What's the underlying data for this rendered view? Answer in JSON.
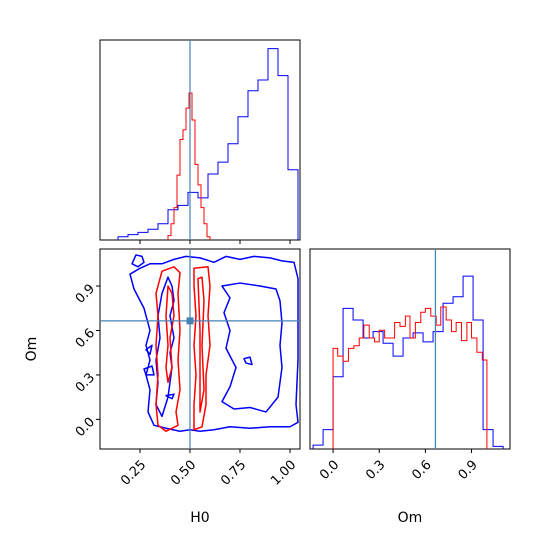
{
  "chart_data": {
    "type": "corner",
    "parameters": [
      "H0",
      "Om"
    ],
    "truth": {
      "H0": 0.5,
      "Om": 0.665
    },
    "colors": {
      "blue": "#0000ff",
      "red": "#ff0000",
      "truth": "#4682b4",
      "frame": "#000000"
    },
    "panels": [
      {
        "id": "hist-H0",
        "type": "step-histogram",
        "xlim": [
          0.05,
          1.05
        ],
        "xticks": [
          0.25,
          0.5,
          0.75,
          1.0
        ],
        "show_tick_labels": false,
        "series": [
          {
            "color": "blue",
            "edges": [
              0.14,
              0.19,
              0.24,
              0.29,
              0.34,
              0.39,
              0.44,
              0.49,
              0.54,
              0.59,
              0.64,
              0.69,
              0.74,
              0.79,
              0.84,
              0.89,
              0.94,
              0.99,
              1.04
            ],
            "counts": [
              0.3,
              0.5,
              0.7,
              1.0,
              1.5,
              2.8,
              3.2,
              4.4,
              3.9,
              6.1,
              7.2,
              8.9,
              11.4,
              13.8,
              14.8,
              17.7,
              15.2,
              6.5
            ]
          },
          {
            "color": "red",
            "edges": [
              0.39,
              0.405,
              0.42,
              0.435,
              0.45,
              0.465,
              0.48,
              0.495,
              0.51,
              0.525,
              0.54,
              0.555,
              0.57,
              0.585,
              0.6
            ],
            "counts": [
              0.4,
              1.5,
              3.0,
              6.0,
              9.3,
              10.2,
              12.2,
              13.6,
              11.1,
              7.0,
              5.1,
              3.0,
              1.5,
              0.3
            ]
          }
        ],
        "ylim": [
          0,
          18.5
        ]
      },
      {
        "id": "hist-Om",
        "type": "step-histogram",
        "xlim": [
          -0.15,
          1.15
        ],
        "xticks": [
          0.0,
          0.3,
          0.6,
          0.9
        ],
        "xtick_labels": [
          "0.0",
          "0.3",
          "0.6",
          "0.9"
        ],
        "xlabel": "Om",
        "series": [
          {
            "color": "blue",
            "edges": [
              -0.13,
              -0.065,
              0.0,
              0.065,
              0.13,
              0.195,
              0.26,
              0.325,
              0.39,
              0.455,
              0.52,
              0.585,
              0.65,
              0.715,
              0.78,
              0.845,
              0.91,
              0.975,
              1.04,
              1.105
            ],
            "counts": [
              0.3,
              1.5,
              5.6,
              10.9,
              10.0,
              8.6,
              9.1,
              8.2,
              7.2,
              8.6,
              9.0,
              8.3,
              9.1,
              11.3,
              11.8,
              13.4,
              10.0,
              1.5,
              0.2
            ]
          },
          {
            "color": "red",
            "edges": [
              0.0,
              0.03,
              0.065,
              0.1,
              0.135,
              0.17,
              0.2,
              0.235,
              0.27,
              0.3,
              0.335,
              0.37,
              0.4,
              0.435,
              0.47,
              0.5,
              0.535,
              0.57,
              0.6,
              0.635,
              0.67,
              0.7,
              0.735,
              0.77,
              0.8,
              0.835,
              0.87,
              0.9,
              0.935,
              0.97,
              1.0
            ],
            "counts": [
              7.8,
              7.2,
              6.8,
              7.8,
              8.0,
              8.6,
              9.6,
              8.6,
              8.3,
              9.2,
              8.6,
              8.6,
              9.8,
              9.5,
              10.3,
              8.6,
              9.8,
              10.6,
              10.9,
              10.3,
              9.6,
              11.0,
              10.0,
              9.1,
              9.8,
              8.4,
              9.8,
              8.6,
              7.5,
              6.9
            ]
          }
        ],
        "ylim": [
          0,
          15.5
        ]
      },
      {
        "id": "contour-H0-Om",
        "type": "contour",
        "xlim": [
          0.05,
          1.05
        ],
        "ylim": [
          -0.2,
          1.15
        ],
        "xticks": [
          0.25,
          0.5,
          0.75,
          1.0
        ],
        "xtick_labels": [
          "0.25",
          "0.50",
          "0.75",
          "1.00"
        ],
        "yticks": [
          0.0,
          0.3,
          0.6,
          0.9
        ],
        "ytick_labels": [
          "0.0",
          "0.3",
          "0.6",
          "0.9"
        ],
        "xlabel": "H0",
        "ylabel": "Om",
        "contours": [
          {
            "color": "blue",
            "points": [
              [
                0.3,
                1.05
              ],
              [
                0.36,
                1.05
              ],
              [
                0.42,
                1.08
              ],
              [
                0.48,
                1.1
              ],
              [
                0.55,
                1.09
              ],
              [
                0.62,
                1.06
              ],
              [
                0.68,
                1.1
              ],
              [
                0.75,
                1.08
              ],
              [
                0.82,
                1.1
              ],
              [
                0.9,
                1.09
              ],
              [
                0.96,
                1.07
              ],
              [
                1.02,
                1.06
              ],
              [
                1.04,
                0.95
              ],
              [
                1.04,
                0.7
              ],
              [
                1.04,
                0.4
              ],
              [
                1.03,
                0.1
              ],
              [
                1.04,
                -0.02
              ],
              [
                1.0,
                -0.05
              ],
              [
                0.9,
                -0.05
              ],
              [
                0.8,
                -0.06
              ],
              [
                0.7,
                -0.05
              ],
              [
                0.62,
                -0.07
              ],
              [
                0.55,
                -0.08
              ],
              [
                0.5,
                -0.07
              ],
              [
                0.45,
                -0.08
              ],
              [
                0.38,
                -0.06
              ],
              [
                0.32,
                -0.04
              ],
              [
                0.29,
                0.05
              ],
              [
                0.3,
                0.2
              ],
              [
                0.28,
                0.3
              ],
              [
                0.3,
                0.4
              ],
              [
                0.28,
                0.5
              ],
              [
                0.3,
                0.6
              ],
              [
                0.27,
                0.75
              ],
              [
                0.22,
                0.88
              ],
              [
                0.2,
                0.98
              ],
              [
                0.25,
                1.02
              ],
              [
                0.3,
                1.05
              ]
            ],
            "closed": true
          },
          {
            "color": "blue",
            "points": [
              [
                0.66,
                0.9
              ],
              [
                0.75,
                0.92
              ],
              [
                0.85,
                0.9
              ],
              [
                0.93,
                0.88
              ],
              [
                0.95,
                0.8
              ],
              [
                0.96,
                0.65
              ],
              [
                0.95,
                0.5
              ],
              [
                0.96,
                0.35
              ],
              [
                0.94,
                0.15
              ],
              [
                0.88,
                0.05
              ],
              [
                0.8,
                0.08
              ],
              [
                0.72,
                0.07
              ],
              [
                0.66,
                0.12
              ],
              [
                0.7,
                0.22
              ],
              [
                0.73,
                0.35
              ],
              [
                0.68,
                0.48
              ],
              [
                0.7,
                0.6
              ],
              [
                0.67,
                0.72
              ],
              [
                0.7,
                0.82
              ],
              [
                0.66,
                0.9
              ]
            ],
            "closed": true
          },
          {
            "color": "blue",
            "points": [
              [
                0.39,
                0.96
              ],
              [
                0.41,
                0.9
              ],
              [
                0.42,
                0.8
              ],
              [
                0.4,
                0.7
              ],
              [
                0.42,
                0.55
              ],
              [
                0.4,
                0.45
              ],
              [
                0.41,
                0.35
              ],
              [
                0.4,
                0.25
              ],
              [
                0.39,
                0.15
              ],
              [
                0.36,
                0.02
              ],
              [
                0.33,
                0.1
              ],
              [
                0.34,
                0.25
              ],
              [
                0.33,
                0.4
              ],
              [
                0.35,
                0.55
              ],
              [
                0.34,
                0.7
              ],
              [
                0.36,
                0.85
              ],
              [
                0.39,
                0.96
              ]
            ],
            "closed": true
          },
          {
            "color": "blue",
            "points": [
              [
                0.23,
                1.11
              ],
              [
                0.26,
                1.1
              ],
              [
                0.27,
                1.06
              ],
              [
                0.24,
                1.03
              ],
              [
                0.21,
                1.05
              ],
              [
                0.23,
                1.11
              ]
            ],
            "closed": true
          },
          {
            "color": "blue",
            "points": [
              [
                0.28,
                0.47
              ],
              [
                0.31,
                0.5
              ],
              [
                0.3,
                0.44
              ],
              [
                0.28,
                0.47
              ]
            ],
            "closed": true
          },
          {
            "color": "blue",
            "points": [
              [
                0.27,
                0.34
              ],
              [
                0.31,
                0.36
              ],
              [
                0.32,
                0.3
              ],
              [
                0.28,
                0.3
              ],
              [
                0.27,
                0.34
              ]
            ],
            "closed": true
          },
          {
            "color": "blue",
            "points": [
              [
                0.77,
                0.41
              ],
              [
                0.8,
                0.42
              ],
              [
                0.81,
                0.37
              ],
              [
                0.78,
                0.38
              ],
              [
                0.77,
                0.41
              ]
            ],
            "closed": true
          },
          {
            "color": "blue",
            "points": [
              [
                0.38,
                0.16
              ],
              [
                0.42,
                0.17
              ],
              [
                0.41,
                0.14
              ],
              [
                0.38,
                0.16
              ]
            ],
            "closed": true
          },
          {
            "color": "red",
            "points": [
              [
                0.36,
                1.0
              ],
              [
                0.42,
                1.03
              ],
              [
                0.45,
                0.99
              ],
              [
                0.44,
                0.85
              ],
              [
                0.45,
                0.6
              ],
              [
                0.44,
                0.4
              ],
              [
                0.45,
                0.2
              ],
              [
                0.43,
                0.05
              ],
              [
                0.44,
                -0.04
              ],
              [
                0.38,
                -0.08
              ],
              [
                0.34,
                -0.04
              ],
              [
                0.33,
                0.1
              ],
              [
                0.34,
                0.3
              ],
              [
                0.33,
                0.5
              ],
              [
                0.34,
                0.7
              ],
              [
                0.33,
                0.85
              ],
              [
                0.36,
                1.0
              ]
            ],
            "closed": true
          },
          {
            "color": "red",
            "points": [
              [
                0.52,
                1.02
              ],
              [
                0.59,
                1.03
              ],
              [
                0.6,
                0.9
              ],
              [
                0.59,
                0.7
              ],
              [
                0.6,
                0.5
              ],
              [
                0.58,
                0.3
              ],
              [
                0.58,
                0.1
              ],
              [
                0.56,
                -0.05
              ],
              [
                0.52,
                -0.07
              ],
              [
                0.52,
                0.1
              ],
              [
                0.53,
                0.3
              ],
              [
                0.52,
                0.5
              ],
              [
                0.53,
                0.7
              ],
              [
                0.52,
                0.9
              ],
              [
                0.52,
                1.02
              ]
            ],
            "closed": true
          },
          {
            "color": "red",
            "points": [
              [
                0.54,
                0.95
              ],
              [
                0.56,
                0.96
              ],
              [
                0.57,
                0.8
              ],
              [
                0.56,
                0.5
              ],
              [
                0.57,
                0.2
              ],
              [
                0.55,
                0.05
              ],
              [
                0.55,
                0.3
              ],
              [
                0.55,
                0.6
              ],
              [
                0.54,
                0.95
              ]
            ],
            "closed": true
          },
          {
            "color": "red",
            "points": [
              [
                0.39,
                0.25
              ],
              [
                0.41,
                0.35
              ],
              [
                0.4,
                0.55
              ],
              [
                0.42,
                0.7
              ],
              [
                0.41,
                0.85
              ],
              [
                0.39,
                0.9
              ],
              [
                0.38,
                0.7
              ],
              [
                0.39,
                0.5
              ],
              [
                0.38,
                0.35
              ],
              [
                0.39,
                0.25
              ]
            ],
            "closed": true
          }
        ]
      }
    ]
  }
}
